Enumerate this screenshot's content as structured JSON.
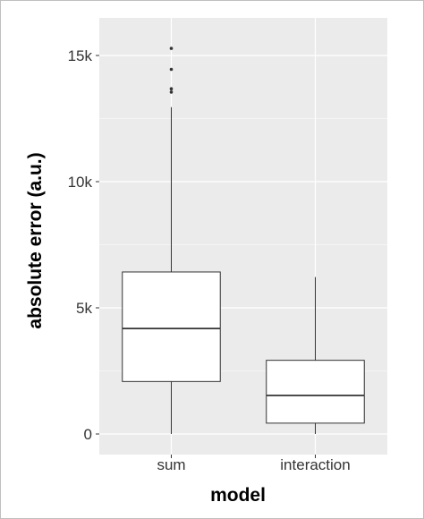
{
  "chart_data": {
    "type": "box",
    "title": "",
    "xlabel": "model",
    "ylabel": "absolute error (a.u.)",
    "ylim": [
      0,
      15900
    ],
    "y_ticks": [
      {
        "value": 0,
        "label": "0"
      },
      {
        "value": 5000,
        "label": "5k"
      },
      {
        "value": 10000,
        "label": "10k"
      },
      {
        "value": 15000,
        "label": "15k"
      }
    ],
    "grid": true,
    "categories": [
      "sum",
      "interaction"
    ],
    "boxes": [
      {
        "category": "sum",
        "whisker_low": 0,
        "q1": 2080,
        "median": 4180,
        "q3": 6420,
        "whisker_high": 12950,
        "outliers": [
          13550,
          13680,
          14450,
          15280
        ]
      },
      {
        "category": "interaction",
        "whisker_low": 0,
        "q1": 430,
        "median": 1530,
        "q3": 2920,
        "whisker_high": 6220,
        "outliers": []
      }
    ],
    "colors": {
      "panel": "#ebebeb",
      "grid": "#ffffff",
      "box_fill": "#ffffff",
      "box_stroke": "#333333"
    }
  }
}
